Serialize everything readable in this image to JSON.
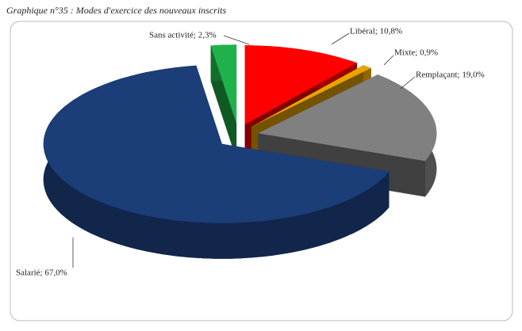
{
  "chart_data": {
    "type": "pie3d",
    "title": "Graphique n°35 : Modes d'exercice des nouveaux inscrits",
    "values": [
      10.8,
      0.9,
      19.0,
      67.0,
      2.3
    ],
    "value_labels": [
      "Libéral; 10,8%",
      "Mixte; 0,9%",
      "Remplaçant; 19,0%",
      "Salarié; 67,0%",
      "Sans activité; 2,3%"
    ],
    "colors": [
      "#ff0000",
      "#e8a400",
      "#808080",
      "#1b3d78",
      "#1fb24a"
    ]
  }
}
